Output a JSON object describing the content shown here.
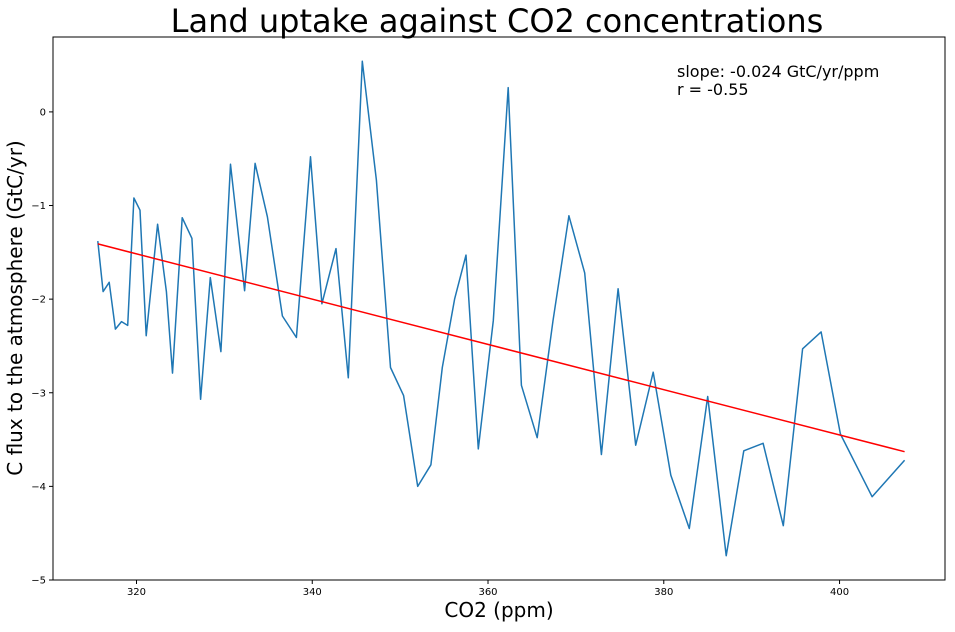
{
  "chart_data": {
    "type": "line",
    "title": "Land uptake against CO2 concentrations",
    "xlabel": "CO2 (ppm)",
    "ylabel": "C flux to the atmosphere (GtC/yr)",
    "xlim": [
      310.5,
      412
    ],
    "ylim": [
      -5,
      0.8
    ],
    "xticks": [
      320,
      340,
      360,
      380,
      400
    ],
    "yticks": [
      0,
      -1,
      -2,
      -3,
      -4,
      -5
    ],
    "grid": false,
    "annotation": {
      "slope_text": "slope: -0.024 GtC/yr/ppm",
      "r_text": "r = -0.55",
      "placement": "top-right"
    },
    "series": [
      {
        "kind": "data",
        "color": "#1f77b4",
        "x": [
          315.6,
          316.2,
          316.9,
          317.6,
          318.3,
          319.0,
          319.7,
          320.4,
          321.1,
          322.4,
          323.4,
          324.1,
          325.2,
          326.3,
          327.3,
          328.4,
          329.6,
          330.7,
          332.3,
          333.5,
          334.9,
          336.6,
          338.2,
          339.8,
          341.1,
          342.7,
          344.1,
          345.7,
          347.3,
          348.9,
          350.4,
          352.0,
          353.5,
          354.8,
          356.2,
          357.5,
          358.9,
          360.6,
          362.3,
          363.8,
          365.6,
          367.4,
          369.2,
          371.0,
          372.9,
          374.8,
          376.8,
          378.8,
          380.8,
          382.9,
          385.0,
          387.1,
          389.1,
          391.3,
          393.6,
          395.8,
          397.9,
          400.1,
          403.7,
          407.4
        ],
        "y": [
          -1.38,
          -1.92,
          -1.82,
          -2.32,
          -2.24,
          -2.28,
          -0.92,
          -1.05,
          -2.39,
          -1.2,
          -1.92,
          -2.79,
          -1.13,
          -1.35,
          -3.07,
          -1.77,
          -2.56,
          -0.56,
          -1.91,
          -0.55,
          -1.12,
          -2.18,
          -2.41,
          -0.48,
          -2.05,
          -1.46,
          -2.84,
          0.54,
          -0.73,
          -2.73,
          -3.03,
          -4.0,
          -3.77,
          -2.73,
          -2.0,
          -1.53,
          -3.6,
          -2.23,
          0.26,
          -2.92,
          -3.48,
          -2.23,
          -1.11,
          -1.72,
          -3.66,
          -1.89,
          -3.56,
          -2.78,
          -3.88,
          -4.45,
          -3.04,
          -4.74,
          -3.62,
          -3.54,
          -4.42,
          -2.53,
          -2.35,
          -3.44,
          -4.11,
          -3.72
        ]
      },
      {
        "kind": "trend",
        "color": "#ff0000",
        "x": [
          315.6,
          407.4
        ],
        "y": [
          -1.41,
          -3.63
        ]
      }
    ]
  }
}
